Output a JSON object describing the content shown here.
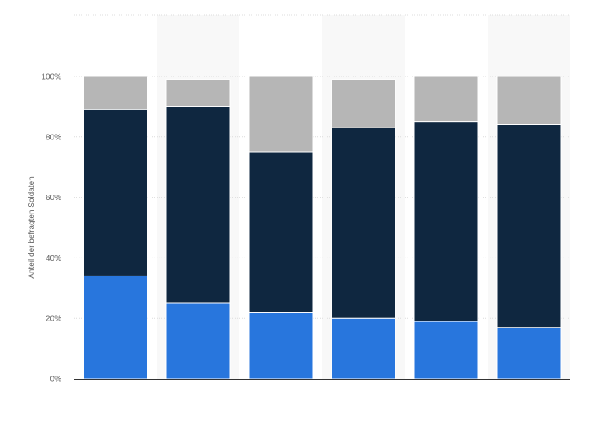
{
  "chart_data": {
    "type": "bar",
    "stacked": true,
    "categories": [
      "",
      "",
      "",
      "",
      "",
      ""
    ],
    "series": [
      {
        "color": "#2876dd",
        "values": [
          34,
          25,
          22,
          20,
          19,
          17
        ]
      },
      {
        "color": "#0f2740",
        "values": [
          55,
          65,
          53,
          63,
          66,
          67
        ]
      },
      {
        "color": "#b6b6b6",
        "values": [
          11,
          9,
          25,
          16,
          15,
          16
        ]
      }
    ],
    "title": "",
    "xlabel": "",
    "ylabel": "Anteil der befragten Soldaten",
    "ylim": [
      0,
      100
    ],
    "yticks": [
      0,
      20,
      40,
      60,
      80,
      100
    ],
    "ytick_labels": [
      "0%",
      "20%",
      "40%",
      "60%",
      "80%",
      "100%"
    ],
    "grid": true,
    "legend": "none",
    "colors": {
      "grid": "#dcdcdc",
      "baseline": "#333333",
      "band": "#f8f8f8",
      "tick_text": "#666666"
    }
  }
}
